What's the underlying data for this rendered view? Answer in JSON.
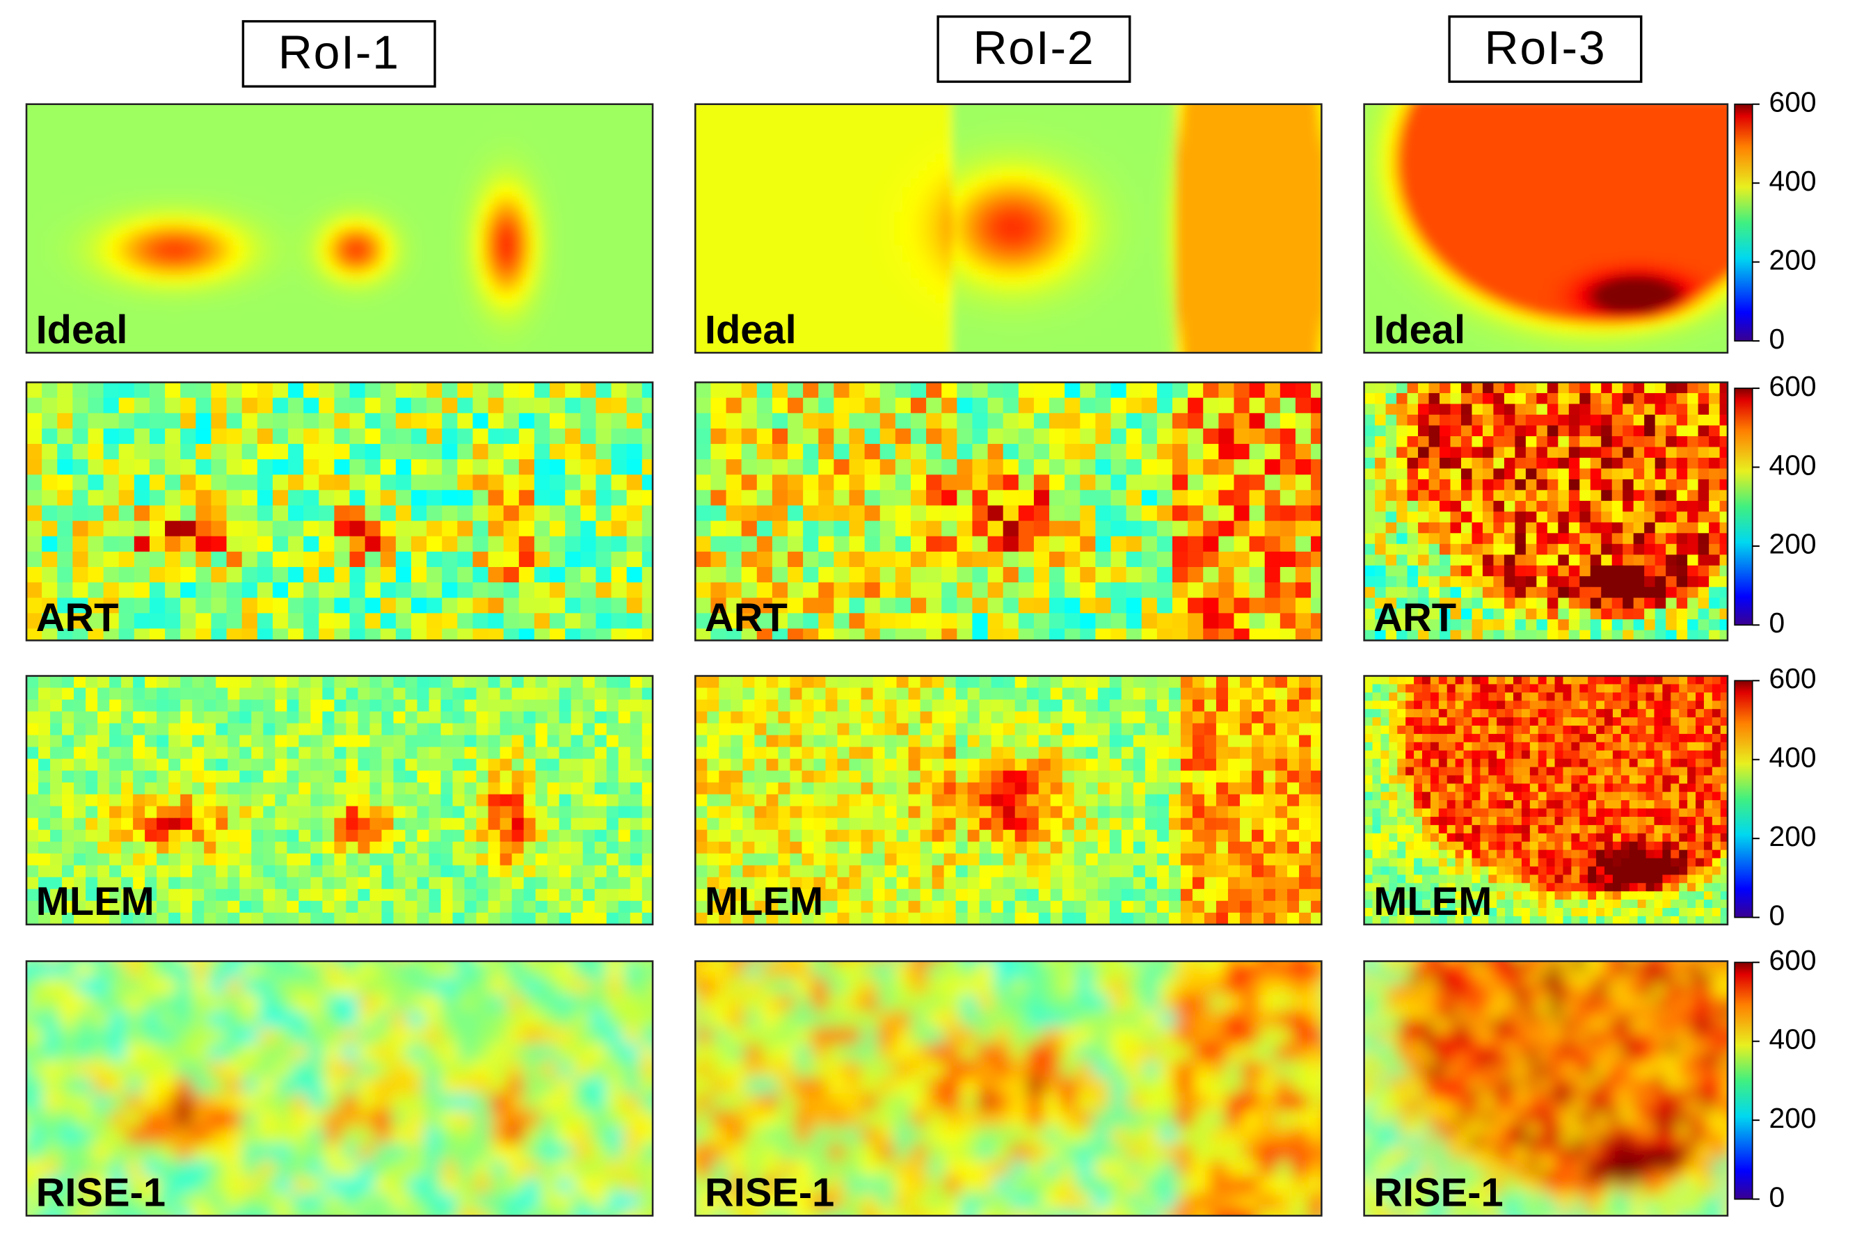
{
  "columns": [
    "RoI-1",
    "RoI-2",
    "RoI-3"
  ],
  "rows": [
    "Ideal",
    "ART",
    "MLEM",
    "RISE-1"
  ],
  "colorbar": {
    "lim": [
      0,
      600
    ],
    "ticks": [
      0,
      200,
      400,
      600
    ],
    "colormap": "jet"
  }
}
